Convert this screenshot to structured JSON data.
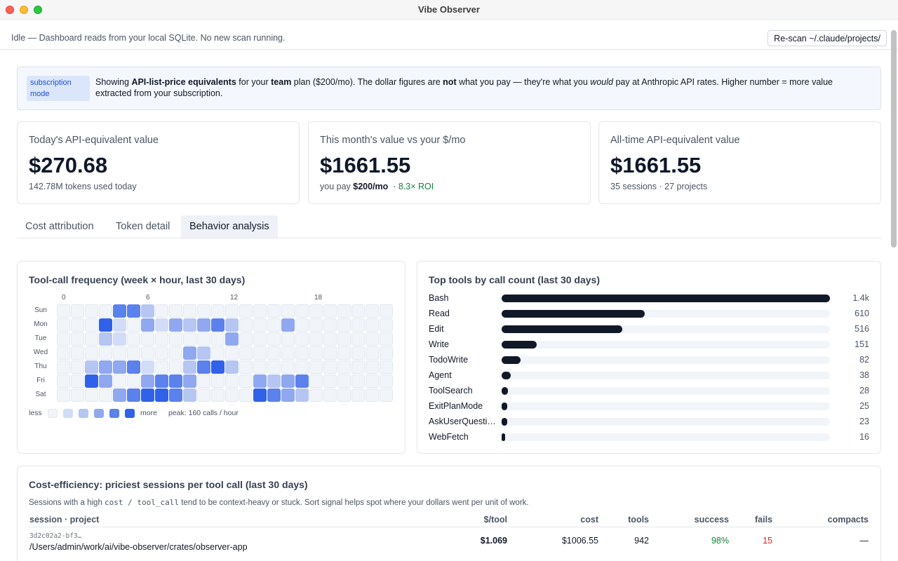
{
  "window": {
    "title": "Vibe Observer"
  },
  "status": {
    "text": "Idle — Dashboard reads from your local SQLite. No new scan running.",
    "rescan_label": "Re-scan ~/.claude/projects/"
  },
  "banner": {
    "badge": "subscription mode",
    "t1": "Showing ",
    "t2": "API-list-price equivalents",
    "t3": " for your ",
    "t4": "team",
    "t5": " plan ($200/mo). The dollar figures are ",
    "t6": "not",
    "t7": " what you pay — they're what you ",
    "t8": "would",
    "t9": " pay at Anthropic API rates. Higher number = more value extracted from your subscription."
  },
  "cards": {
    "today": {
      "label": "Today's API-equivalent value",
      "value": "$270.68",
      "sub": "142.78M tokens used today"
    },
    "month": {
      "label": "This month's value vs your $/mo",
      "value": "$1661.55",
      "sub_prefix": "you pay ",
      "sub_bold": "$200/mo",
      "roi": "· 8.3× ROI"
    },
    "alltime": {
      "label": "All-time API-equivalent value",
      "value": "$1661.55",
      "sub": "35 sessions · 27 projects"
    }
  },
  "tabs": [
    "Cost attribution",
    "Token detail",
    "Behavior analysis"
  ],
  "heatmap": {
    "title": "Tool-call frequency (week × hour, last 30 days)",
    "hour_labels": [
      "0",
      "6",
      "12",
      "18"
    ],
    "days": [
      "Sun",
      "Mon",
      "Tue",
      "Wed",
      "Thu",
      "Fri",
      "Sat"
    ],
    "levels": [
      [
        0,
        0,
        0,
        0,
        4,
        4,
        2,
        0,
        0,
        0,
        0,
        0,
        0,
        0,
        0,
        0,
        0,
        0,
        0,
        0,
        0,
        0,
        0,
        0
      ],
      [
        0,
        0,
        0,
        5,
        1,
        0,
        3,
        1,
        3,
        2,
        3,
        4,
        2,
        0,
        0,
        0,
        3,
        0,
        0,
        0,
        0,
        0,
        0,
        0
      ],
      [
        0,
        0,
        0,
        2,
        1,
        0,
        0,
        0,
        0,
        0,
        0,
        0,
        3,
        0,
        0,
        0,
        0,
        0,
        0,
        0,
        0,
        0,
        0,
        0
      ],
      [
        0,
        0,
        0,
        0,
        0,
        0,
        0,
        0,
        0,
        3,
        2,
        0,
        0,
        0,
        0,
        0,
        0,
        0,
        0,
        0,
        0,
        0,
        0,
        0
      ],
      [
        0,
        0,
        2,
        3,
        3,
        4,
        1,
        0,
        0,
        2,
        4,
        5,
        2,
        0,
        0,
        0,
        0,
        0,
        0,
        0,
        0,
        0,
        0,
        0
      ],
      [
        0,
        0,
        5,
        3,
        0,
        0,
        3,
        4,
        4,
        3,
        0,
        0,
        0,
        0,
        3,
        2,
        3,
        4,
        0,
        0,
        0,
        0,
        0,
        0
      ],
      [
        0,
        0,
        0,
        0,
        3,
        4,
        5,
        5,
        4,
        2,
        0,
        0,
        0,
        0,
        5,
        4,
        3,
        2,
        0,
        0,
        0,
        0,
        0,
        0
      ]
    ],
    "legend": {
      "less": "less",
      "more": "more",
      "peak": "peak: 160 calls / hour"
    },
    "palette": [
      "#f1f5f9",
      "#d2dcf7",
      "#b5c6f3",
      "#8fa8f0",
      "#5b81ec",
      "#2f62e8"
    ]
  },
  "top_tools": {
    "title": "Top tools by call count (last 30 days)",
    "max": 1400,
    "items": [
      {
        "name": "Bash",
        "value": 1400,
        "label": "1.4k"
      },
      {
        "name": "Read",
        "value": 610,
        "label": "610"
      },
      {
        "name": "Edit",
        "value": 516,
        "label": "516"
      },
      {
        "name": "Write",
        "value": 151,
        "label": "151"
      },
      {
        "name": "TodoWrite",
        "value": 82,
        "label": "82"
      },
      {
        "name": "Agent",
        "value": 38,
        "label": "38"
      },
      {
        "name": "ToolSearch",
        "value": 28,
        "label": "28"
      },
      {
        "name": "ExitPlanMode",
        "value": 25,
        "label": "25"
      },
      {
        "name": "AskUserQuesti…",
        "value": 23,
        "label": "23"
      },
      {
        "name": "WebFetch",
        "value": 16,
        "label": "16"
      }
    ]
  },
  "cost_eff": {
    "title": "Cost-efficiency: priciest sessions per tool call (last 30 days)",
    "desc_prefix": "Sessions with a high ",
    "desc_code": "cost / tool_call",
    "desc_suffix": " tend to be context-heavy or stuck. Sort signal helps spot where your dollars went per unit of work.",
    "headers": {
      "session": "session · project",
      "per_tool": "$/tool",
      "cost": "cost",
      "tools": "tools",
      "success": "success",
      "fails": "fails",
      "compacts": "compacts"
    },
    "rows": [
      {
        "session_id": "3d2c02a2-bf3…",
        "project": "/Users/admin/work/ai/vibe-observer/crates/observer-app",
        "per_tool": "$1.069",
        "cost": "$1006.55",
        "tools": "942",
        "success": "98%",
        "fails": "15",
        "compacts": "—"
      }
    ]
  }
}
